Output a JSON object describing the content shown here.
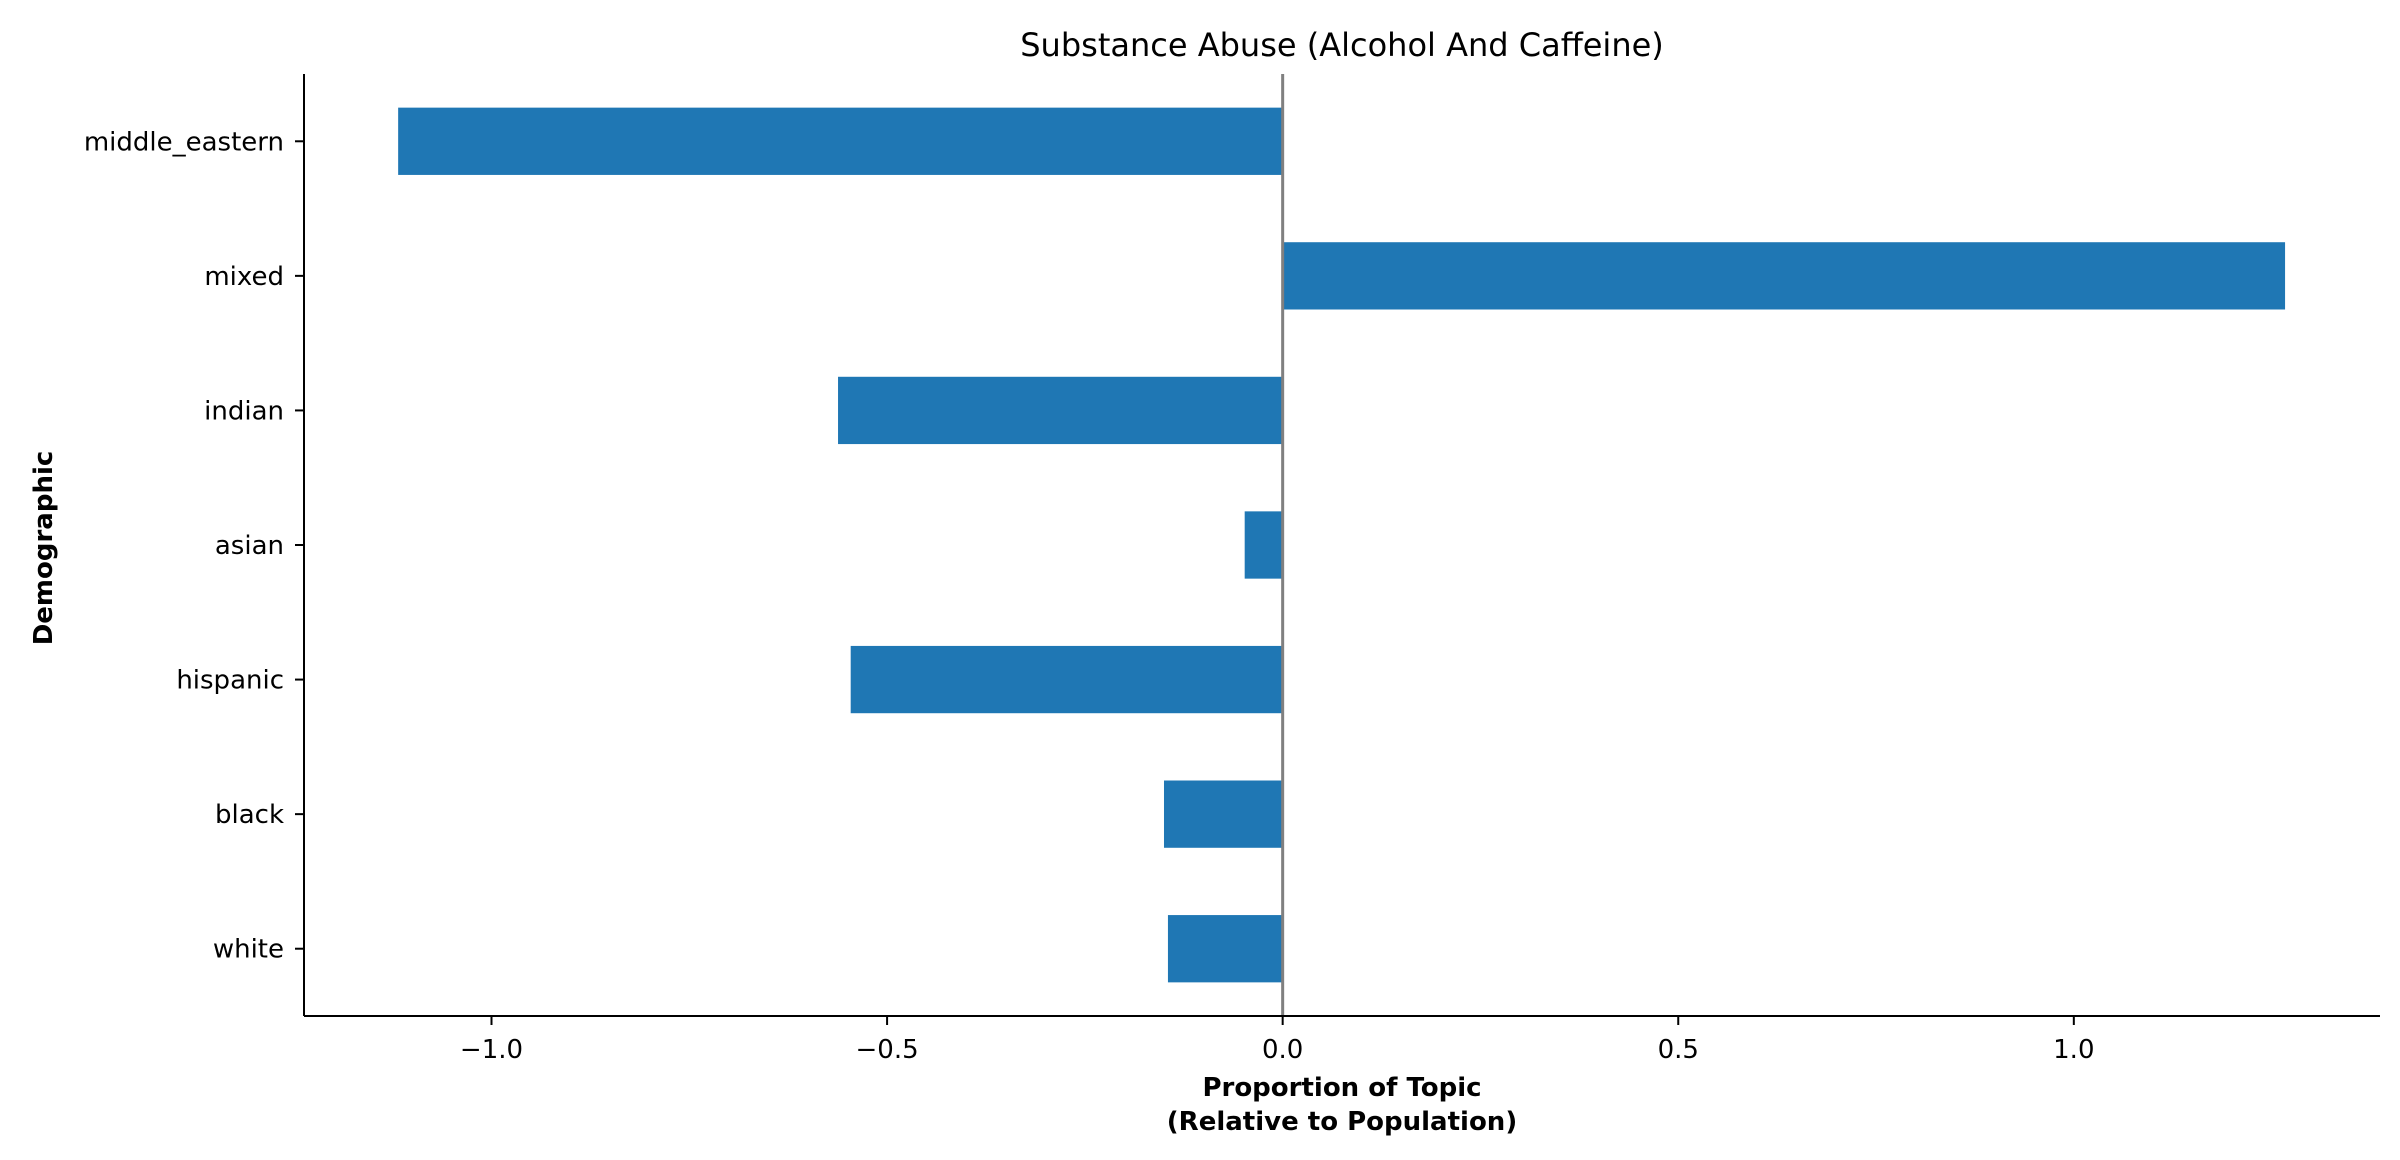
{
  "chart_data": {
    "type": "bar",
    "orientation": "horizontal",
    "title": "Substance Abuse (Alcohol And Caffeine)",
    "xlabel": [
      "Proportion of Topic",
      "(Relative to Population)"
    ],
    "ylabel": "Demographic",
    "categories": [
      "middle_eastern",
      "mixed",
      "indian",
      "asian",
      "hispanic",
      "black",
      "white"
    ],
    "values": [
      -1.118,
      1.267,
      -0.562,
      -0.048,
      -0.546,
      -0.15,
      -0.145
    ],
    "xlim": [
      -1.237,
      1.387
    ],
    "xticks": [
      -1.0,
      -0.5,
      0.0,
      0.5,
      1.0
    ],
    "xtick_labels": [
      "−1.0",
      "−0.5",
      "0.0",
      "0.5",
      "1.0"
    ],
    "grid": false,
    "bar_color": "#1f77b4",
    "zero_line_color": "#808080"
  }
}
